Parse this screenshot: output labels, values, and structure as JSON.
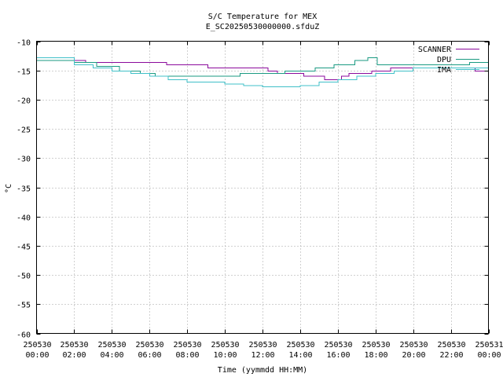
{
  "chart_data": {
    "type": "line",
    "title": "S/C Temperature for MEX",
    "subtitle": "E_SC20250530000000.sfduZ",
    "xlabel": "Time (yymmdd HH:MM)",
    "ylabel": "°C",
    "xlim": [
      0,
      24
    ],
    "ylim": [
      -60,
      -10
    ],
    "yticks": [
      -10,
      -15,
      -20,
      -25,
      -30,
      -35,
      -40,
      -45,
      -50,
      -55,
      -60
    ],
    "xticks": [
      {
        "value": 0,
        "date": "250530",
        "time": "00:00"
      },
      {
        "value": 2,
        "date": "250530",
        "time": "02:00"
      },
      {
        "value": 4,
        "date": "250530",
        "time": "04:00"
      },
      {
        "value": 6,
        "date": "250530",
        "time": "06:00"
      },
      {
        "value": 8,
        "date": "250530",
        "time": "08:00"
      },
      {
        "value": 10,
        "date": "250530",
        "time": "10:00"
      },
      {
        "value": 12,
        "date": "250530",
        "time": "12:00"
      },
      {
        "value": 14,
        "date": "250530",
        "time": "14:00"
      },
      {
        "value": 16,
        "date": "250530",
        "time": "16:00"
      },
      {
        "value": 18,
        "date": "250530",
        "time": "18:00"
      },
      {
        "value": 20,
        "date": "250530",
        "time": "20:00"
      },
      {
        "value": 22,
        "date": "250530",
        "time": "22:00"
      },
      {
        "value": 24,
        "date": "250531",
        "time": "00:00"
      }
    ],
    "grid": true,
    "legend_position": "top-right",
    "series": [
      {
        "name": "SCANNER",
        "color": "#8b0a9c",
        "x": [
          0,
          1.5,
          2.6,
          6.9,
          9.1,
          12.3,
          12.8,
          13.6,
          14.2,
          15.3,
          16.2,
          16.6,
          17.8,
          18.8,
          20.3,
          23.3,
          24
        ],
        "y": [
          -13.3,
          -13.3,
          -13.6,
          -14.0,
          -14.6,
          -15.1,
          -15.5,
          -15.5,
          -16.0,
          -16.6,
          -16.0,
          -15.5,
          -15.1,
          -14.6,
          -14.6,
          -15.1,
          -15.1
        ]
      },
      {
        "name": "DPU",
        "color": "#1a9a82",
        "x": [
          0,
          0.6,
          1.0,
          2.0,
          3.2,
          4.4,
          5.5,
          6.3,
          7.6,
          8.5,
          9.6,
          10.8,
          11.5,
          12.4,
          13.2,
          13.8,
          14.8,
          15.8,
          16.9,
          17.6,
          18.1,
          21.6,
          23.0,
          24
        ],
        "y": [
          -13.3,
          -13.3,
          -13.3,
          -13.6,
          -14.3,
          -15.1,
          -15.5,
          -16.0,
          -16.0,
          -16.0,
          -16.0,
          -15.5,
          -15.5,
          -15.5,
          -15.1,
          -15.1,
          -14.6,
          -14.0,
          -13.3,
          -12.8,
          -14.0,
          -14.0,
          -13.6,
          -13.6
        ]
      },
      {
        "name": "IMA",
        "color": "#40c0c8",
        "x": [
          0,
          1.4,
          2.0,
          3.0,
          4.0,
          5.0,
          6.0,
          7.0,
          8.0,
          9.0,
          10.0,
          11.0,
          12.0,
          13.0,
          14.0,
          15.0,
          16.0,
          17.0,
          18.0,
          19.0,
          20.0,
          20.4,
          21.0,
          22.0,
          23.0,
          24
        ],
        "y": [
          -12.8,
          -12.8,
          -14.0,
          -14.6,
          -15.1,
          -15.5,
          -16.0,
          -16.6,
          -17.0,
          -17.0,
          -17.3,
          -17.6,
          -17.8,
          -17.8,
          -17.6,
          -17.0,
          -16.6,
          -16.0,
          -15.5,
          -15.1,
          -14.6,
          -14.6,
          -14.6,
          -14.6,
          -14.6,
          -14.6
        ]
      }
    ]
  }
}
